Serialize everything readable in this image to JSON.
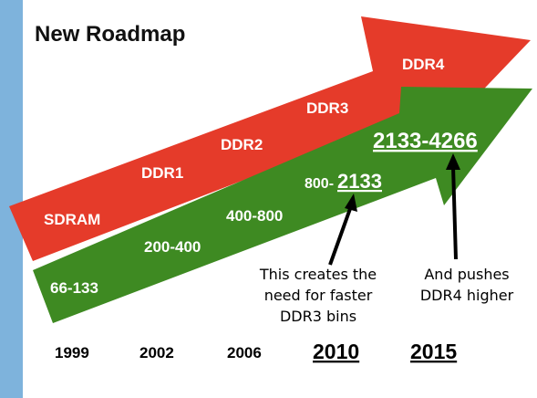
{
  "title": "New Roadmap",
  "colors": {
    "side_bar": "#7eb3dc",
    "red_arrow": "#e53b2a",
    "green_arrow": "#3e8a22",
    "label_text": "#ffffff",
    "ink": "#000000"
  },
  "red_labels": [
    "SDRAM",
    "DDR1",
    "DDR2",
    "DDR3",
    "DDR4"
  ],
  "green_labels": [
    "66-133",
    "200-400",
    "400-800",
    "800-",
    "2133",
    "2133-4266"
  ],
  "years": [
    "1999",
    "2002",
    "2006",
    "2010",
    "2015"
  ],
  "notes": {
    "left": [
      "This creates the",
      "need for faster",
      "DDR3 bins"
    ],
    "right": [
      "And pushes",
      "DDR4 higher"
    ]
  }
}
